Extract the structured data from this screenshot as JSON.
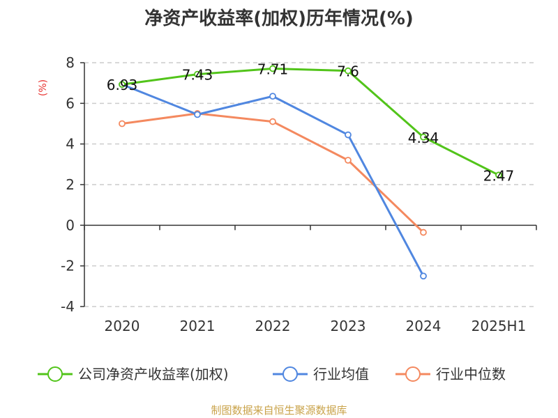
{
  "page": {
    "source": "制图数据来自恒生聚源数据库"
  },
  "chart_data": {
    "type": "line",
    "title": "净资产收益率(加权)历年情况(%)",
    "ylabel": "(%)",
    "xlabel": "",
    "categories": [
      "2020",
      "2021",
      "2022",
      "2023",
      "2024",
      "2025H1"
    ],
    "ylim": [
      -4,
      8
    ],
    "yticks": [
      8,
      6,
      4,
      2,
      0,
      -2,
      -4
    ],
    "grid": true,
    "legend_position": "bottom",
    "series": [
      {
        "name": "公司净资产收益率(加权)",
        "color": "#52c41a",
        "values": [
          6.93,
          7.43,
          7.71,
          7.6,
          4.34,
          2.47
        ],
        "labels": [
          "6.93",
          "7.43",
          "7.71",
          "7.6",
          "4.34",
          "2.47"
        ]
      },
      {
        "name": "行业均值",
        "color": "#5087e0",
        "values": [
          6.93,
          5.45,
          6.35,
          4.45,
          -2.5,
          null
        ],
        "labels": []
      },
      {
        "name": "行业中位数",
        "color": "#f4895f",
        "values": [
          5.0,
          5.5,
          5.1,
          3.2,
          -0.35,
          null
        ],
        "labels": []
      }
    ]
  }
}
